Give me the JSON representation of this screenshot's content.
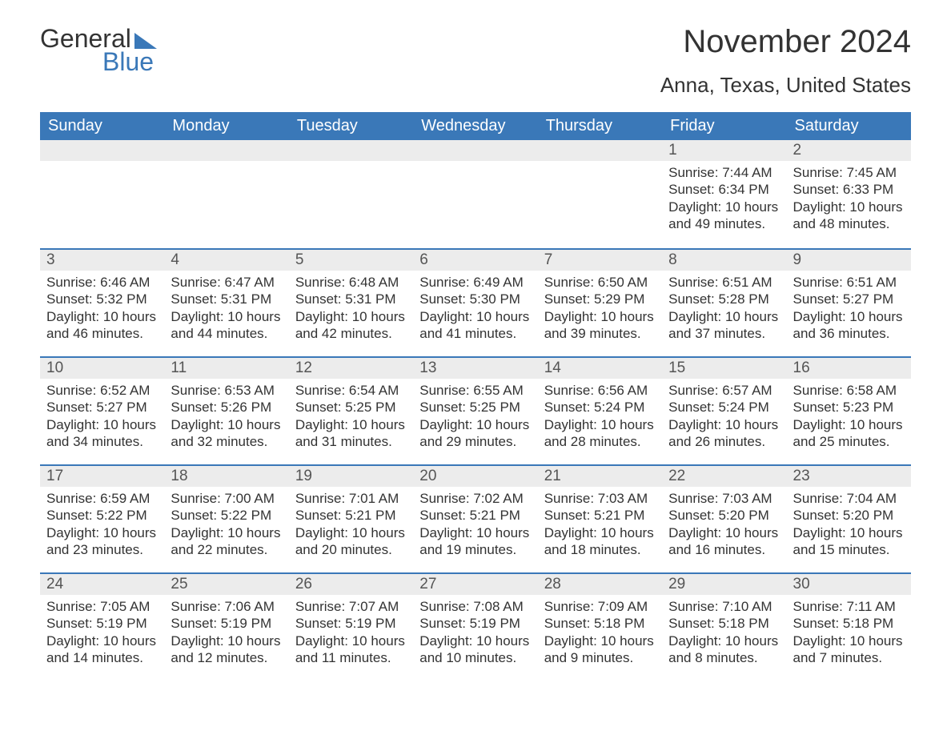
{
  "logo": {
    "text1": "General",
    "text2": "Blue"
  },
  "title": "November 2024",
  "location": "Anna, Texas, United States",
  "colors": {
    "brand_blue": "#3a78b8",
    "header_bg": "#3a78b8",
    "header_text": "#ffffff",
    "daynum_bg": "#ececec",
    "text": "#333333",
    "background": "#ffffff"
  },
  "daysOfWeek": [
    "Sunday",
    "Monday",
    "Tuesday",
    "Wednesday",
    "Thursday",
    "Friday",
    "Saturday"
  ],
  "weeks": [
    [
      null,
      null,
      null,
      null,
      null,
      {
        "n": 1,
        "sunrise": "7:44 AM",
        "sunset": "6:34 PM",
        "daylight": "10 hours and 49 minutes."
      },
      {
        "n": 2,
        "sunrise": "7:45 AM",
        "sunset": "6:33 PM",
        "daylight": "10 hours and 48 minutes."
      }
    ],
    [
      {
        "n": 3,
        "sunrise": "6:46 AM",
        "sunset": "5:32 PM",
        "daylight": "10 hours and 46 minutes."
      },
      {
        "n": 4,
        "sunrise": "6:47 AM",
        "sunset": "5:31 PM",
        "daylight": "10 hours and 44 minutes."
      },
      {
        "n": 5,
        "sunrise": "6:48 AM",
        "sunset": "5:31 PM",
        "daylight": "10 hours and 42 minutes."
      },
      {
        "n": 6,
        "sunrise": "6:49 AM",
        "sunset": "5:30 PM",
        "daylight": "10 hours and 41 minutes."
      },
      {
        "n": 7,
        "sunrise": "6:50 AM",
        "sunset": "5:29 PM",
        "daylight": "10 hours and 39 minutes."
      },
      {
        "n": 8,
        "sunrise": "6:51 AM",
        "sunset": "5:28 PM",
        "daylight": "10 hours and 37 minutes."
      },
      {
        "n": 9,
        "sunrise": "6:51 AM",
        "sunset": "5:27 PM",
        "daylight": "10 hours and 36 minutes."
      }
    ],
    [
      {
        "n": 10,
        "sunrise": "6:52 AM",
        "sunset": "5:27 PM",
        "daylight": "10 hours and 34 minutes."
      },
      {
        "n": 11,
        "sunrise": "6:53 AM",
        "sunset": "5:26 PM",
        "daylight": "10 hours and 32 minutes."
      },
      {
        "n": 12,
        "sunrise": "6:54 AM",
        "sunset": "5:25 PM",
        "daylight": "10 hours and 31 minutes."
      },
      {
        "n": 13,
        "sunrise": "6:55 AM",
        "sunset": "5:25 PM",
        "daylight": "10 hours and 29 minutes."
      },
      {
        "n": 14,
        "sunrise": "6:56 AM",
        "sunset": "5:24 PM",
        "daylight": "10 hours and 28 minutes."
      },
      {
        "n": 15,
        "sunrise": "6:57 AM",
        "sunset": "5:24 PM",
        "daylight": "10 hours and 26 minutes."
      },
      {
        "n": 16,
        "sunrise": "6:58 AM",
        "sunset": "5:23 PM",
        "daylight": "10 hours and 25 minutes."
      }
    ],
    [
      {
        "n": 17,
        "sunrise": "6:59 AM",
        "sunset": "5:22 PM",
        "daylight": "10 hours and 23 minutes."
      },
      {
        "n": 18,
        "sunrise": "7:00 AM",
        "sunset": "5:22 PM",
        "daylight": "10 hours and 22 minutes."
      },
      {
        "n": 19,
        "sunrise": "7:01 AM",
        "sunset": "5:21 PM",
        "daylight": "10 hours and 20 minutes."
      },
      {
        "n": 20,
        "sunrise": "7:02 AM",
        "sunset": "5:21 PM",
        "daylight": "10 hours and 19 minutes."
      },
      {
        "n": 21,
        "sunrise": "7:03 AM",
        "sunset": "5:21 PM",
        "daylight": "10 hours and 18 minutes."
      },
      {
        "n": 22,
        "sunrise": "7:03 AM",
        "sunset": "5:20 PM",
        "daylight": "10 hours and 16 minutes."
      },
      {
        "n": 23,
        "sunrise": "7:04 AM",
        "sunset": "5:20 PM",
        "daylight": "10 hours and 15 minutes."
      }
    ],
    [
      {
        "n": 24,
        "sunrise": "7:05 AM",
        "sunset": "5:19 PM",
        "daylight": "10 hours and 14 minutes."
      },
      {
        "n": 25,
        "sunrise": "7:06 AM",
        "sunset": "5:19 PM",
        "daylight": "10 hours and 12 minutes."
      },
      {
        "n": 26,
        "sunrise": "7:07 AM",
        "sunset": "5:19 PM",
        "daylight": "10 hours and 11 minutes."
      },
      {
        "n": 27,
        "sunrise": "7:08 AM",
        "sunset": "5:19 PM",
        "daylight": "10 hours and 10 minutes."
      },
      {
        "n": 28,
        "sunrise": "7:09 AM",
        "sunset": "5:18 PM",
        "daylight": "10 hours and 9 minutes."
      },
      {
        "n": 29,
        "sunrise": "7:10 AM",
        "sunset": "5:18 PM",
        "daylight": "10 hours and 8 minutes."
      },
      {
        "n": 30,
        "sunrise": "7:11 AM",
        "sunset": "5:18 PM",
        "daylight": "10 hours and 7 minutes."
      }
    ]
  ],
  "labels": {
    "sunrise": "Sunrise:",
    "sunset": "Sunset:",
    "daylight": "Daylight:"
  }
}
